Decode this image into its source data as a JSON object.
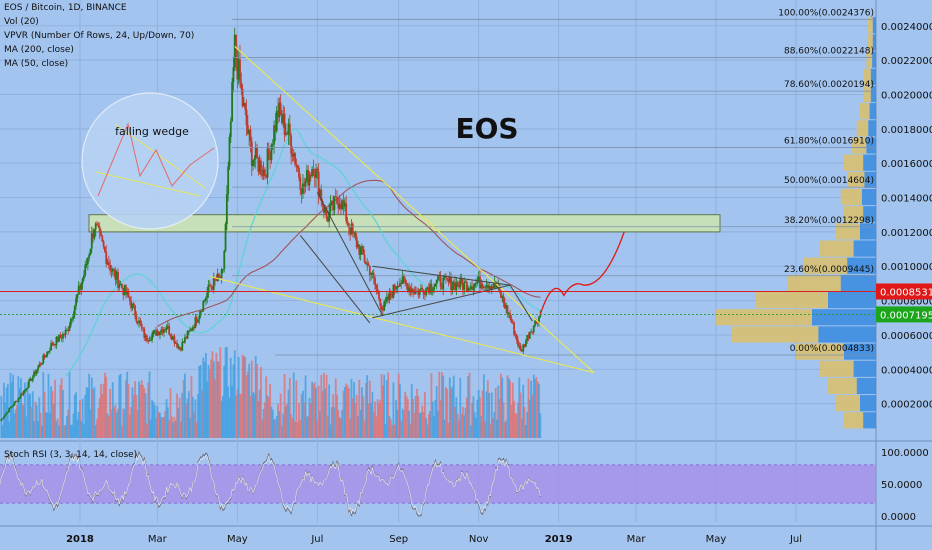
{
  "header": {
    "title": "EOS / Bitcoin, 1D, BINANCE",
    "indicators": [
      "Vol (20)",
      "VPVR (Number Of Rows, 24, Up/Down, 70)",
      "MA (200, close)",
      "MA (50, close)"
    ]
  },
  "colors": {
    "background": "#a3c4ee",
    "grid": "#8fb1dd",
    "candle_up": "#1e7a1e",
    "candle_down": "#c0392b",
    "ma50": "#5fd3d8",
    "ma200": "#a0555e",
    "trendline": "#e6e65a",
    "channel": "#444444",
    "resistance_line": "#d62020",
    "support_zone": "#cfe6b0",
    "projection": "#e01818",
    "vol_up": "#3f9fe0",
    "vol_down": "#e07070",
    "rsi_band": "#a78ee8",
    "last_price_bg": "#1aa51a",
    "level_price_bg": "#e01818"
  },
  "annotations": {
    "big_label": "EOS",
    "wedge_label": "falling wedge"
  },
  "chart_data": {
    "type": "candlestick",
    "symbol": "EOS / Bitcoin",
    "timeframe": "1D",
    "exchange": "BINANCE",
    "y_axis": {
      "ticks": [
        "0.0002000",
        "0.0004000",
        "0.0006000",
        "0.0008000",
        "0.0010000",
        "0.0012000",
        "0.0014000",
        "0.0016000",
        "0.0018000",
        "0.0020000",
        "0.0022000",
        "0.0024000"
      ],
      "range": [
        0.0,
        0.00255
      ]
    },
    "x_axis": {
      "ticks": [
        "2018",
        "Mar",
        "May",
        "Jul",
        "Sep",
        "Nov",
        "2019",
        "Mar",
        "May",
        "Jul"
      ],
      "range": [
        "2017-11-01",
        "2019-08-31"
      ]
    },
    "price_path": {
      "x": [
        "2017-11-01",
        "2017-11-20",
        "2017-12-10",
        "2017-12-22",
        "2018-01-05",
        "2018-01-12",
        "2018-01-25",
        "2018-02-08",
        "2018-02-20",
        "2018-03-08",
        "2018-03-18",
        "2018-03-30",
        "2018-04-10",
        "2018-04-20",
        "2018-04-29",
        "2018-05-05",
        "2018-05-12",
        "2018-05-22",
        "2018-06-01",
        "2018-06-10",
        "2018-06-20",
        "2018-06-28",
        "2018-07-08",
        "2018-07-18",
        "2018-07-28",
        "2018-08-10",
        "2018-08-20",
        "2018-09-01",
        "2018-09-15",
        "2018-10-01",
        "2018-10-20",
        "2018-11-05",
        "2018-11-15",
        "2018-11-25",
        "2018-12-03",
        "2018-12-10",
        "2018-12-18"
      ],
      "y": [
        0.0001,
        0.00028,
        0.00054,
        0.00062,
        0.00098,
        0.00124,
        0.00098,
        0.0008,
        0.00058,
        0.00065,
        0.00052,
        0.00068,
        0.00088,
        0.00095,
        0.00228,
        0.00195,
        0.00165,
        0.00155,
        0.0019,
        0.00175,
        0.00145,
        0.0016,
        0.00128,
        0.0014,
        0.00118,
        0.00098,
        0.00075,
        0.00092,
        0.00085,
        0.00091,
        0.00089,
        0.00091,
        0.00088,
        0.0007,
        0.0005,
        0.00062,
        0.00072
      ]
    },
    "fib_levels": [
      {
        "label": "100.00%(0.0024376)",
        "value": 0.0024376
      },
      {
        "label": "88.60%(0.0022148)",
        "value": 0.0022148
      },
      {
        "label": "78.60%(0.0020194)",
        "value": 0.0020194
      },
      {
        "label": "61.80%(0.0016910)",
        "value": 0.001691
      },
      {
        "label": "50.00%(0.0014604)",
        "value": 0.0014604
      },
      {
        "label": "38.20%(0.0012298)",
        "value": 0.0012298
      },
      {
        "label": "23.60%(0.0009445)",
        "value": 0.0009445
      },
      {
        "label": "0.00%(0.0004833)",
        "value": 0.0004833
      }
    ],
    "price_labels": {
      "level": "0.0008531",
      "last": "0.0007195"
    },
    "rsi": {
      "label": "Stoch RSI (3, 3, 14, 14, close)",
      "ticks": [
        "100.0000",
        "50.0000",
        "0.0000"
      ],
      "band": [
        20,
        80
      ]
    }
  }
}
